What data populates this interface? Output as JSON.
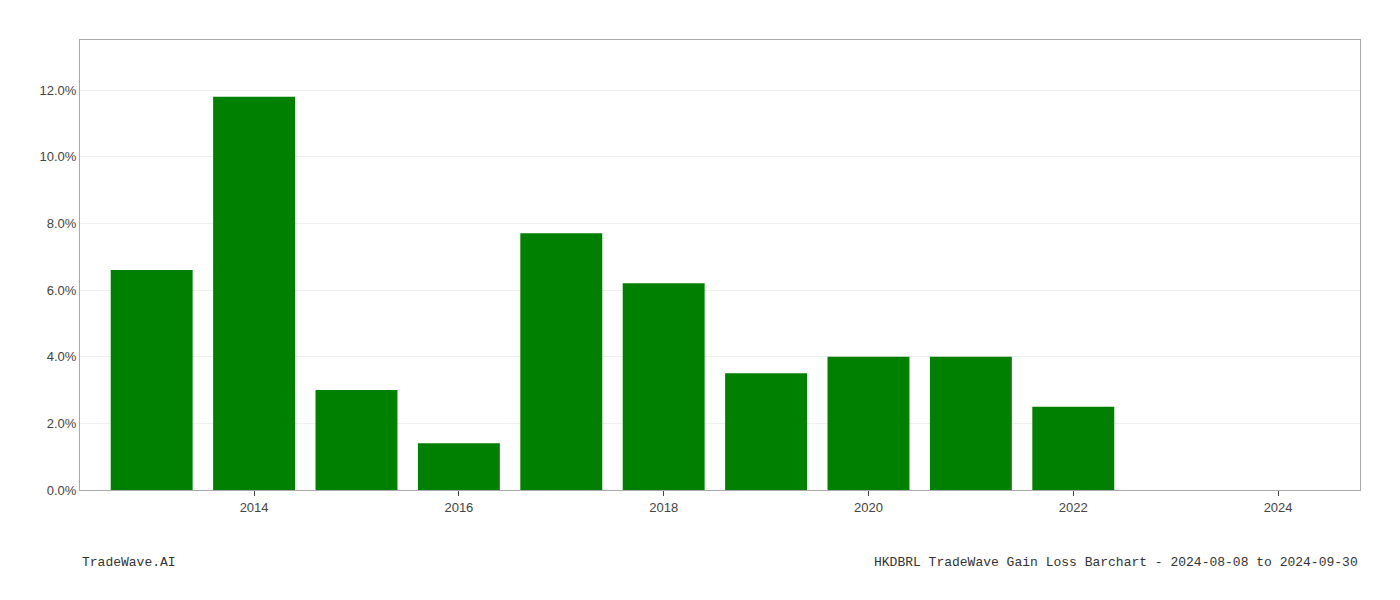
{
  "chart_data": {
    "type": "bar",
    "x": [
      2013,
      2014,
      2015,
      2016,
      2017,
      2018,
      2019,
      2020,
      2021,
      2022,
      2023
    ],
    "values": [
      0.066,
      0.118,
      0.03,
      0.014,
      0.077,
      0.062,
      0.035,
      0.04,
      0.04,
      0.025,
      0.0
    ],
    "color": "#008000",
    "xlim": [
      2012.3,
      2024.8
    ],
    "xticks": [
      2014,
      2016,
      2018,
      2020,
      2022,
      2024
    ],
    "ylim": [
      0,
      0.135
    ],
    "yticks": [
      {
        "value": 0.0,
        "label": "0.0%"
      },
      {
        "value": 0.02,
        "label": "2.0%"
      },
      {
        "value": 0.04,
        "label": "4.0%"
      },
      {
        "value": 0.06,
        "label": "6.0%"
      },
      {
        "value": 0.08,
        "label": "8.0%"
      },
      {
        "value": 0.1,
        "label": "10.0%"
      },
      {
        "value": 0.12,
        "label": "12.0%"
      }
    ],
    "grid": true,
    "annotations": [
      "TradeWave.AI",
      "HKDBRL TradeWave Gain Loss Barchart - 2024-08-08 to 2024-09-30"
    ]
  }
}
